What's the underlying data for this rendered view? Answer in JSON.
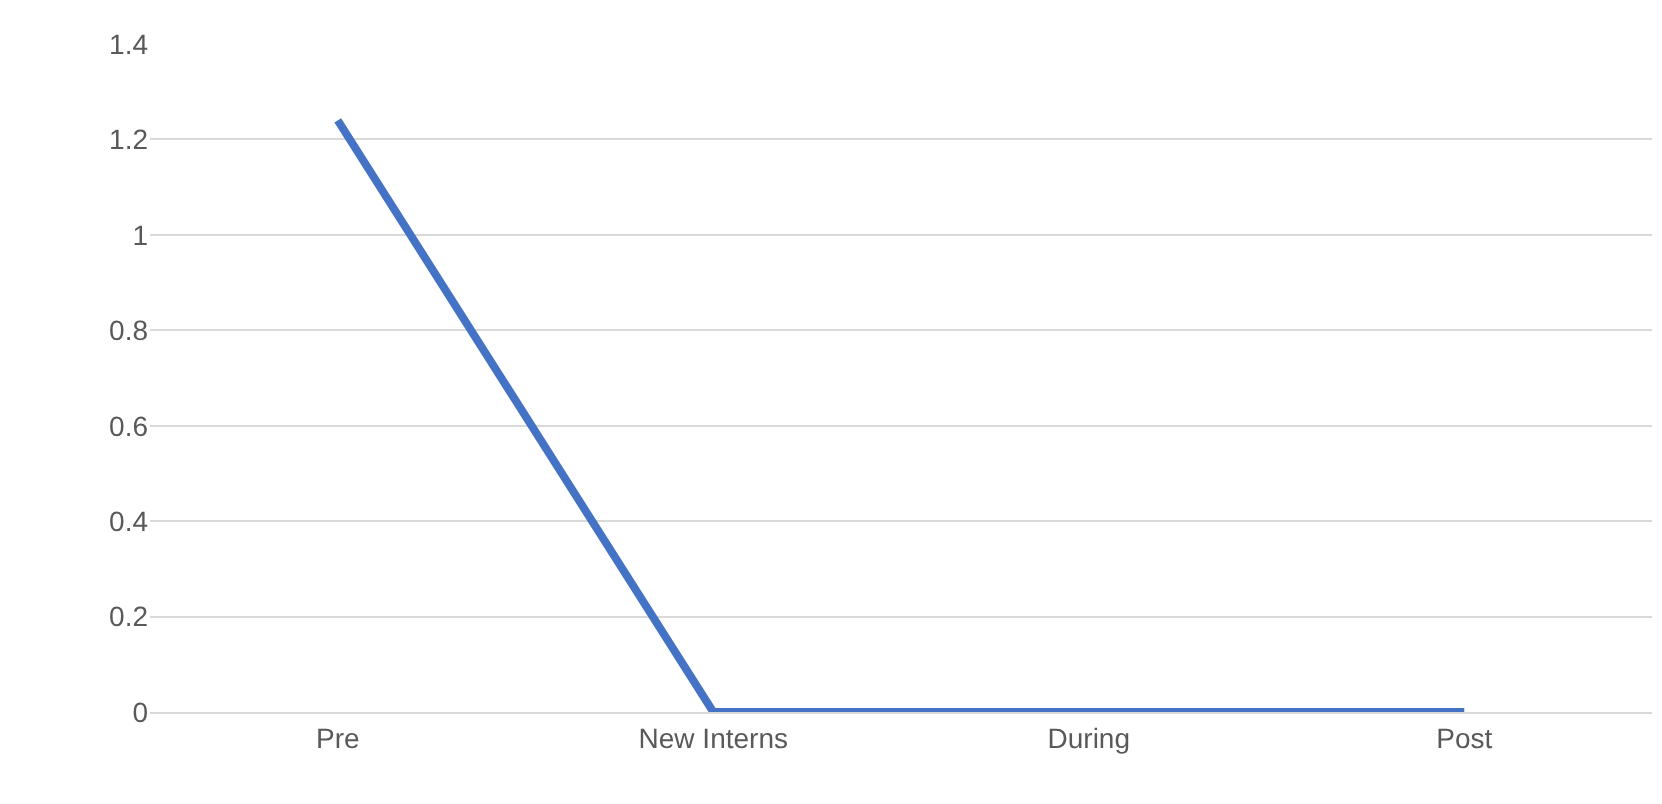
{
  "chart_data": {
    "type": "line",
    "categories": [
      "Pre",
      "New Interns",
      "During",
      "Post"
    ],
    "series": [
      {
        "color": "#4472c4",
        "values": [
          1.24,
          0,
          0,
          0
        ]
      }
    ],
    "ylim": [
      0,
      1.4
    ],
    "yticks": [
      0,
      0.2,
      0.4,
      0.6,
      0.8,
      1,
      1.2,
      1.4
    ],
    "grid": "y",
    "marker": "none",
    "line_style": "solid"
  }
}
